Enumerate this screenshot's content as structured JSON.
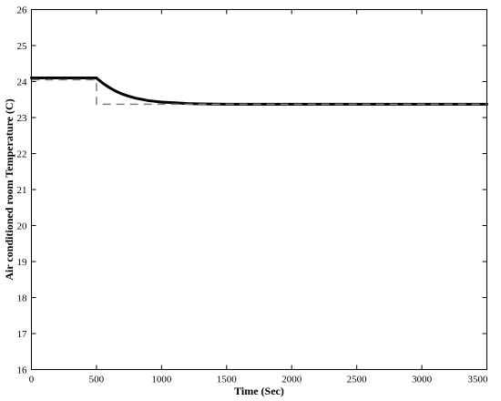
{
  "chart_data": {
    "type": "line",
    "title": "",
    "xlabel": "Time (Sec)",
    "ylabel": "Air conditioned room Temperature (C)",
    "xlim": [
      0,
      3500
    ],
    "ylim": [
      16,
      26
    ],
    "x_ticks": [
      0,
      500,
      1000,
      1500,
      2000,
      2500,
      3000,
      3500
    ],
    "y_ticks": [
      16,
      17,
      18,
      19,
      20,
      21,
      22,
      23,
      24,
      25,
      26
    ],
    "grid": false,
    "legend": "none",
    "series": [
      {
        "style": "solid-thick",
        "color": "#000000",
        "x": [
          0,
          500,
          550,
          600,
          650,
          700,
          750,
          800,
          900,
          1000,
          1100,
          1200,
          1300,
          1500,
          1800,
          2200,
          2600,
          3000,
          3500
        ],
        "y": [
          24.1,
          24.1,
          23.95,
          23.83,
          23.73,
          23.65,
          23.59,
          23.54,
          23.47,
          23.43,
          23.41,
          23.39,
          23.38,
          23.37,
          23.37,
          23.37,
          23.37,
          23.37,
          23.37
        ]
      },
      {
        "style": "dashed",
        "color": "#808080",
        "x": [
          0,
          500,
          500,
          3500
        ],
        "y": [
          24.05,
          24.05,
          23.37,
          23.37
        ]
      }
    ]
  }
}
